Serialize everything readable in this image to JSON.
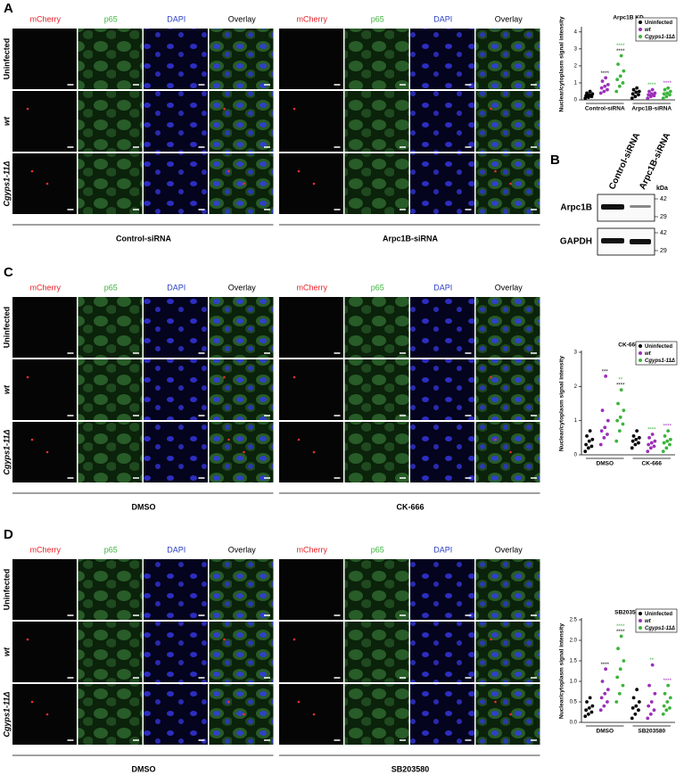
{
  "panels": [
    {
      "label": "A",
      "columns": [
        "mCherry",
        "p65",
        "DAPI",
        "Overlay"
      ],
      "rows": [
        "Uninfected",
        "wt",
        "Cgyps1-11Δ"
      ],
      "conditions": [
        "Control-siRNA",
        "Arpc1B-siRNA"
      ]
    },
    {
      "label": "C",
      "columns": [
        "mCherry",
        "p65",
        "DAPI",
        "Overlay"
      ],
      "rows": [
        "Uninfected",
        "wt",
        "Cgyps1-11Δ"
      ],
      "conditions": [
        "DMSO",
        "CK-666"
      ]
    },
    {
      "label": "D",
      "columns": [
        "mCherry",
        "p65",
        "DAPI",
        "Overlay"
      ],
      "rows": [
        "Uninfected",
        "wt",
        "Cgyps1-11Δ"
      ],
      "conditions": [
        "DMSO",
        "SB203580"
      ]
    }
  ],
  "blot": {
    "label": "B",
    "lanes": [
      "Control-siRNA",
      "Arpc1B-siRNA"
    ],
    "unit": "kDa",
    "bands": [
      {
        "name": "Arpc1B",
        "markers": [
          42,
          29
        ]
      },
      {
        "name": "GAPDH",
        "markers": [
          42,
          29
        ]
      }
    ]
  },
  "chart_data": [
    {
      "type": "scatter",
      "title": "Arpc1B KD",
      "y_label": "Nuclear/cytoplasm signal intensity",
      "categories": [
        "Control-siRNA",
        "Arpc1B-siRNA"
      ],
      "ylim": [
        0,
        4.2
      ],
      "yticks": [
        0,
        1,
        2,
        3,
        4
      ],
      "legend": "upper right",
      "series": [
        {
          "name": "Uninfected",
          "color": "#000000",
          "values": [
            [
              0.1,
              0.15,
              0.2,
              0.25,
              0.3,
              0.35,
              0.4,
              0.5
            ],
            [
              0.1,
              0.2,
              0.3,
              0.35,
              0.45,
              0.5,
              0.6,
              0.7
            ]
          ],
          "annotations": [
            [],
            []
          ]
        },
        {
          "name": "wt",
          "color": "#9b30b8",
          "values": [
            [
              0.4,
              0.5,
              0.6,
              0.7,
              0.8,
              0.9,
              1.1,
              1.3
            ],
            [
              0.1,
              0.2,
              0.25,
              0.3,
              0.35,
              0.4,
              0.5,
              0.6
            ]
          ],
          "annotations": [
            [
              {
                "text": "****",
                "color": "#000000"
              }
            ],
            [
              {
                "text": "****",
                "color": "#3cb43c"
              }
            ]
          ]
        },
        {
          "name": "Cgyps1-11Δ",
          "color": "#3cb43c",
          "values": [
            [
              0.5,
              0.8,
              1.0,
              1.2,
              1.4,
              1.7,
              2.1,
              2.6
            ],
            [
              0.1,
              0.2,
              0.3,
              0.35,
              0.4,
              0.5,
              0.6,
              0.7
            ]
          ],
          "annotations": [
            [
              {
                "text": "****",
                "color": "#3cb43c"
              },
              {
                "text": "****",
                "color": "#000000"
              }
            ],
            [
              {
                "text": "****",
                "color": "#9b30b8"
              }
            ]
          ]
        }
      ]
    },
    {
      "type": "scatter",
      "title": "CK-666",
      "y_label": "Nuclear/cytoplasm signal intensity",
      "categories": [
        "DMSO",
        "CK-666"
      ],
      "ylim": [
        0,
        3
      ],
      "yticks": [
        0,
        1,
        2,
        3
      ],
      "legend": "upper right",
      "series": [
        {
          "name": "Uninfected",
          "color": "#000000",
          "values": [
            [
              0.1,
              0.2,
              0.25,
              0.3,
              0.4,
              0.45,
              0.55,
              0.7
            ],
            [
              0.2,
              0.3,
              0.35,
              0.4,
              0.45,
              0.5,
              0.55,
              0.7
            ]
          ],
          "annotations": [
            [],
            []
          ]
        },
        {
          "name": "wt",
          "color": "#9b30b8",
          "values": [
            [
              0.3,
              0.5,
              0.6,
              0.7,
              0.8,
              1.0,
              1.3,
              2.3
            ],
            [
              0.1,
              0.2,
              0.25,
              0.3,
              0.35,
              0.4,
              0.5,
              0.6
            ]
          ],
          "annotations": [
            [
              {
                "text": "***",
                "color": "#000000"
              }
            ],
            [
              {
                "text": "****",
                "color": "#3cb43c"
              }
            ]
          ]
        },
        {
          "name": "Cgyps1-11Δ",
          "color": "#3cb43c",
          "values": [
            [
              0.4,
              0.7,
              0.9,
              1.0,
              1.1,
              1.3,
              1.5,
              1.9
            ],
            [
              0.1,
              0.2,
              0.3,
              0.35,
              0.4,
              0.45,
              0.55,
              0.7
            ]
          ],
          "annotations": [
            [
              {
                "text": "**",
                "color": "#3cb43c"
              },
              {
                "text": "****",
                "color": "#000000"
              }
            ],
            [
              {
                "text": "****",
                "color": "#9b30b8"
              }
            ]
          ]
        }
      ]
    },
    {
      "type": "scatter",
      "title": "SB203580",
      "y_label": "Nuclear/cytoplasm signal intensity",
      "categories": [
        "DMSO",
        "SB203580"
      ],
      "ylim": [
        0,
        2.5
      ],
      "yticks": [
        {
          "value": 0,
          "label": "0.0"
        },
        0.5,
        {
          "value": 1,
          "label": "1.0"
        },
        1.5,
        {
          "value": 2,
          "label": "2.0"
        },
        2.5
      ],
      "legend": "upper right",
      "series": [
        {
          "name": "Uninfected",
          "color": "#000000",
          "values": [
            [
              0.15,
              0.2,
              0.25,
              0.3,
              0.35,
              0.4,
              0.5,
              0.6
            ],
            [
              0.1,
              0.2,
              0.3,
              0.35,
              0.4,
              0.5,
              0.6,
              0.8
            ]
          ],
          "annotations": [
            [],
            []
          ]
        },
        {
          "name": "wt",
          "color": "#9b30b8",
          "values": [
            [
              0.3,
              0.4,
              0.5,
              0.6,
              0.7,
              0.8,
              1.0,
              1.3
            ],
            [
              0.1,
              0.2,
              0.3,
              0.4,
              0.5,
              0.7,
              0.9,
              1.4
            ]
          ],
          "annotations": [
            [
              {
                "text": "****",
                "color": "#000000"
              }
            ],
            [
              {
                "text": "**",
                "color": "#3cb43c"
              }
            ]
          ]
        },
        {
          "name": "Cgyps1-11Δ",
          "color": "#3cb43c",
          "values": [
            [
              0.5,
              0.7,
              0.9,
              1.1,
              1.3,
              1.5,
              1.8,
              2.1
            ],
            [
              0.2,
              0.3,
              0.35,
              0.4,
              0.5,
              0.6,
              0.7,
              0.9
            ]
          ],
          "annotations": [
            [
              {
                "text": "****",
                "color": "#3cb43c"
              },
              {
                "text": "****",
                "color": "#000000"
              }
            ],
            [
              {
                "text": "****",
                "color": "#9b30b8"
              }
            ]
          ]
        }
      ]
    }
  ]
}
